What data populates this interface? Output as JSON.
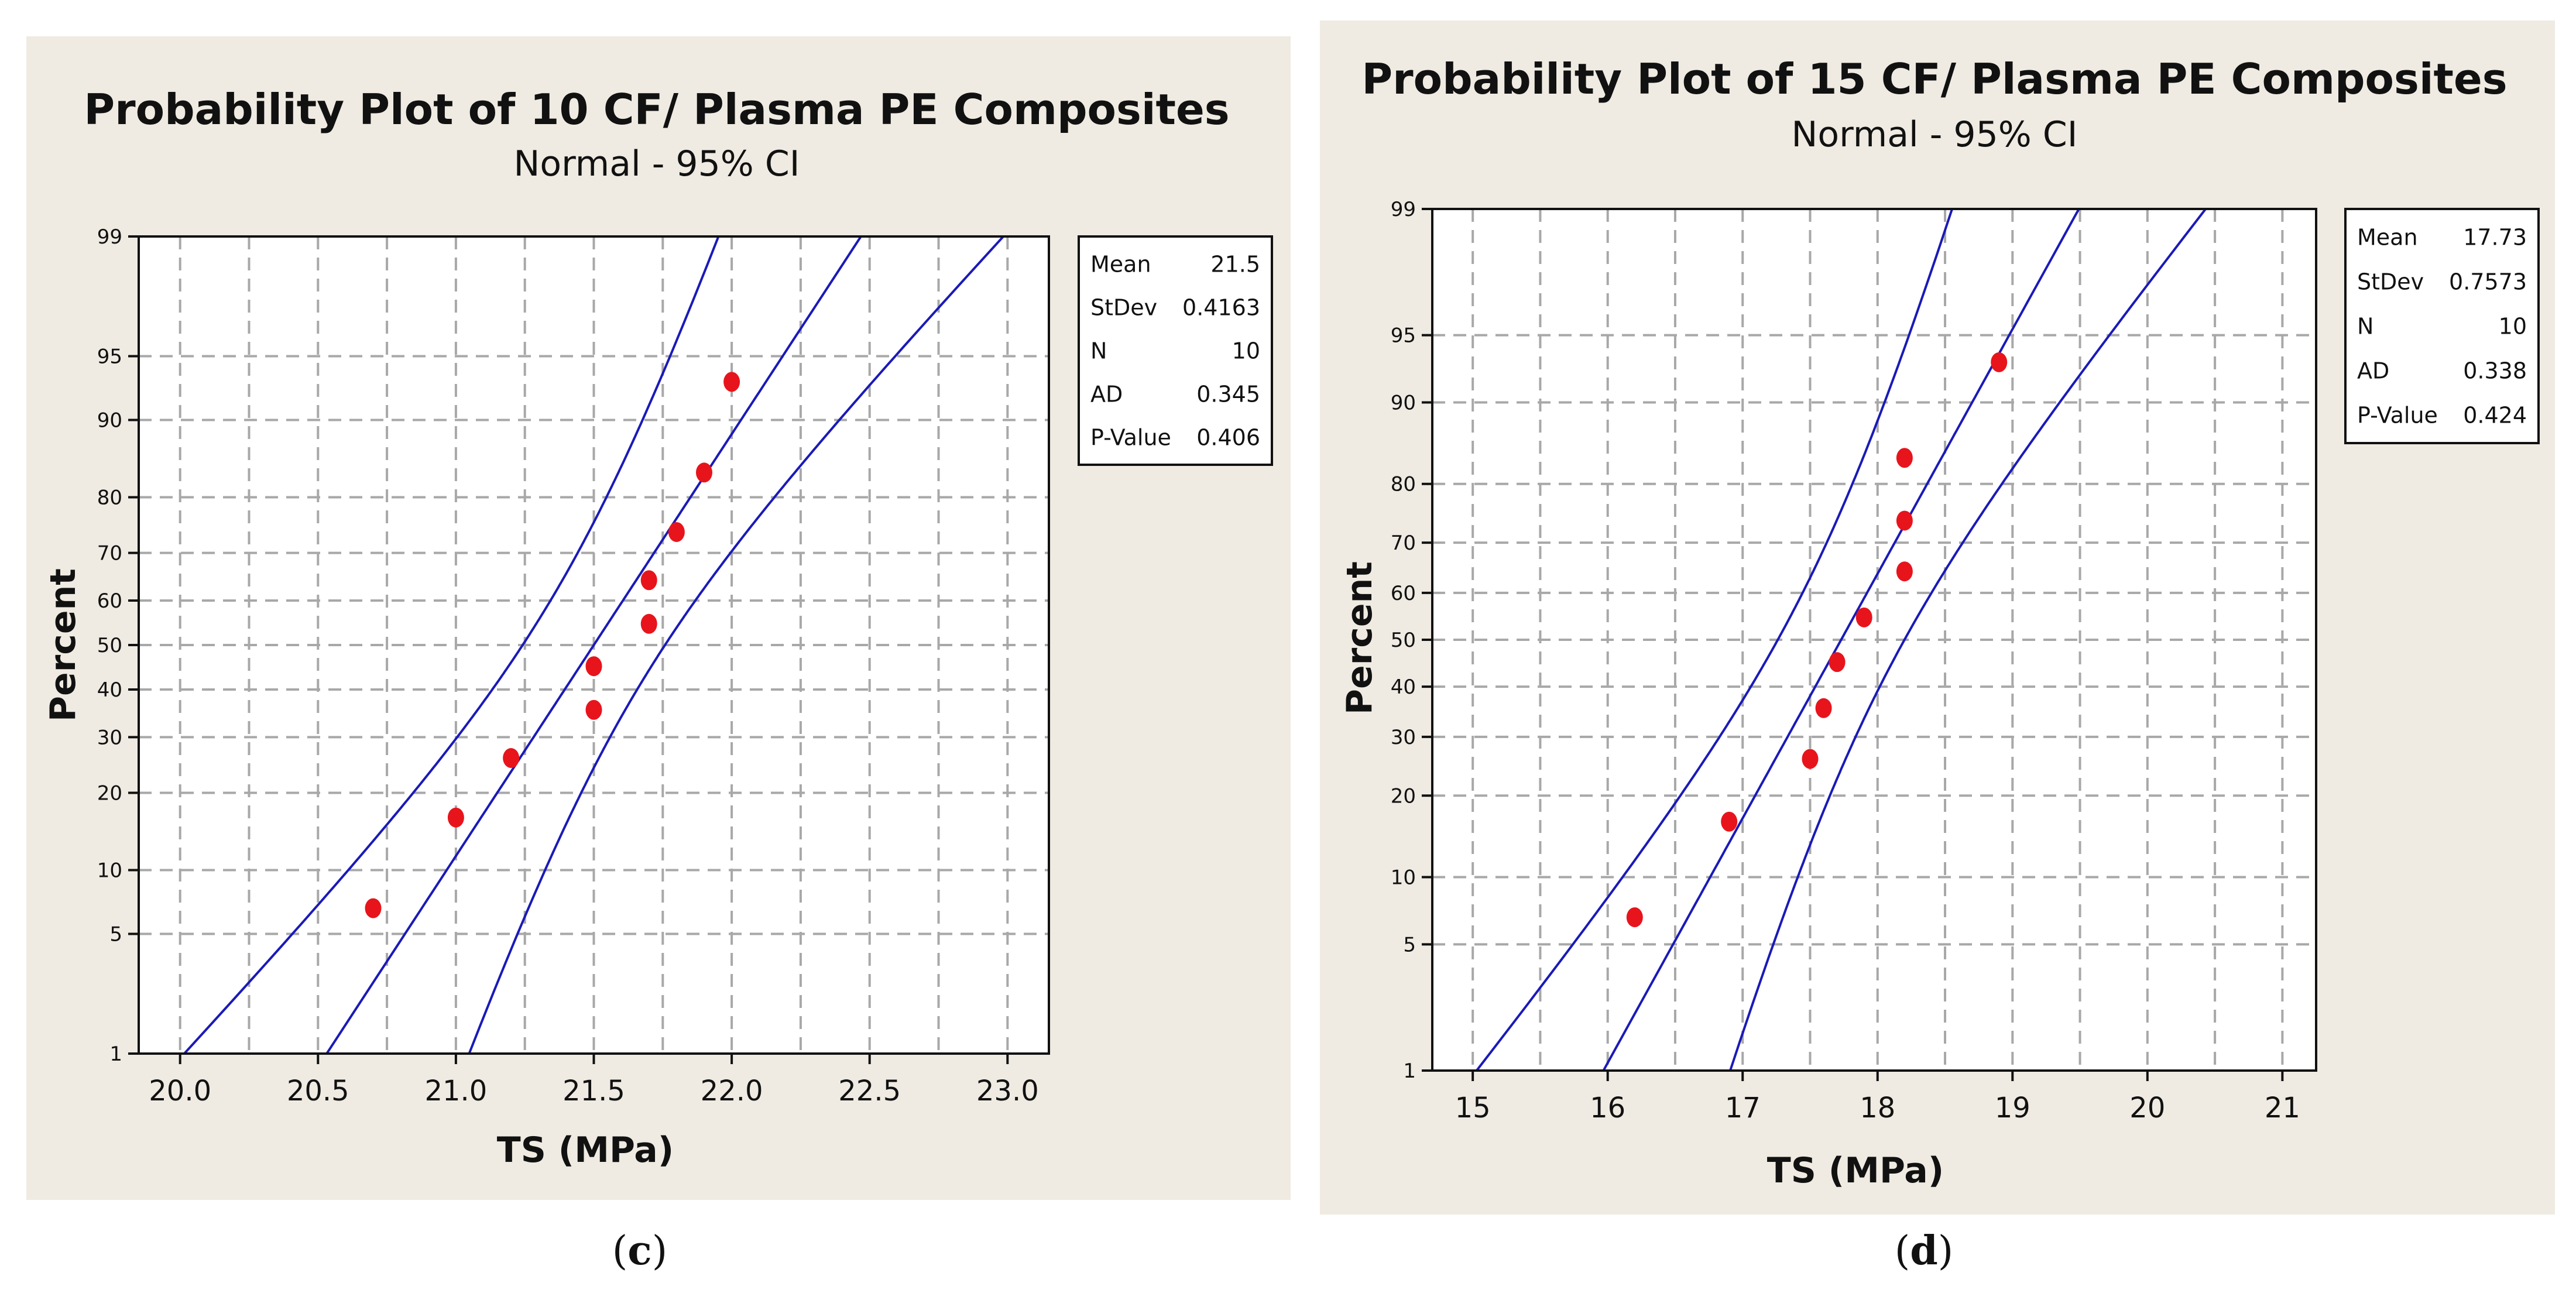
{
  "chart_data": [
    {
      "type": "scatter",
      "subtype": "normal-probability-plot",
      "title": "Probability Plot of 10 CF/ Plasma PE Composites",
      "subtitle": "Normal - 95% CI",
      "xlabel": "TS (MPa)",
      "ylabel": "Percent",
      "xlim": [
        19.85,
        23.15
      ],
      "x_ticks": [
        "20.0",
        "20.5",
        "21.0",
        "21.5",
        "22.0",
        "22.5",
        "23.0"
      ],
      "y_ticks": [
        "1",
        "5",
        "10",
        "20",
        "30",
        "40",
        "50",
        "60",
        "70",
        "80",
        "90",
        "95",
        "99"
      ],
      "points": [
        {
          "x": 20.7,
          "p": 6.7
        },
        {
          "x": 21.0,
          "p": 16.3
        },
        {
          "x": 21.2,
          "p": 26.0
        },
        {
          "x": 21.5,
          "p": 35.6
        },
        {
          "x": 21.5,
          "p": 45.2
        },
        {
          "x": 21.7,
          "p": 54.8
        },
        {
          "x": 21.7,
          "p": 64.4
        },
        {
          "x": 21.8,
          "p": 74.0
        },
        {
          "x": 21.9,
          "p": 83.7
        },
        {
          "x": 22.0,
          "p": 93.3
        }
      ],
      "fit": {
        "mean": 21.5,
        "stdev": 0.4163,
        "n": 10,
        "ci": "95%"
      },
      "stats": [
        {
          "label": "Mean",
          "value": "21.5"
        },
        {
          "label": "StDev",
          "value": "0.4163"
        },
        {
          "label": "N",
          "value": "10"
        },
        {
          "label": "AD",
          "value": "0.345"
        },
        {
          "label": "P-Value",
          "value": "0.406"
        }
      ],
      "grid": true,
      "legend": "right"
    },
    {
      "type": "scatter",
      "subtype": "normal-probability-plot",
      "title": "Probability Plot of 15 CF/ Plasma PE Composites",
      "subtitle": "Normal - 95% CI",
      "xlabel": "TS (MPa)",
      "ylabel": "Percent",
      "xlim": [
        14.7,
        21.25
      ],
      "x_ticks": [
        "15",
        "16",
        "17",
        "18",
        "19",
        "20",
        "21"
      ],
      "y_ticks": [
        "1",
        "5",
        "10",
        "20",
        "30",
        "40",
        "50",
        "60",
        "70",
        "80",
        "90",
        "95",
        "99"
      ],
      "points": [
        {
          "x": 16.2,
          "p": 6.7
        },
        {
          "x": 16.9,
          "p": 16.3
        },
        {
          "x": 17.5,
          "p": 26.0
        },
        {
          "x": 17.6,
          "p": 35.6
        },
        {
          "x": 17.7,
          "p": 45.2
        },
        {
          "x": 17.9,
          "p": 54.8
        },
        {
          "x": 18.2,
          "p": 64.4
        },
        {
          "x": 18.2,
          "p": 74.0
        },
        {
          "x": 18.2,
          "p": 83.7
        },
        {
          "x": 18.9,
          "p": 93.3
        }
      ],
      "fit": {
        "mean": 17.73,
        "stdev": 0.7573,
        "n": 10,
        "ci": "95%"
      },
      "stats": [
        {
          "label": "Mean",
          "value": "17.73"
        },
        {
          "label": "StDev",
          "value": "0.7573"
        },
        {
          "label": "N",
          "value": "10"
        },
        {
          "label": "AD",
          "value": "0.338"
        },
        {
          "label": "P-Value",
          "value": "0.424"
        }
      ],
      "grid": true,
      "legend": "right"
    }
  ],
  "captions": [
    {
      "open": "(",
      "letter": "c",
      "close": ")"
    },
    {
      "open": "(",
      "letter": "d",
      "close": ")"
    }
  ],
  "colors": {
    "panel_bg": "#efebe2",
    "plot_bg": "#ffffff",
    "grid": "#a8a8a8",
    "fit_line": "#1a1ab8",
    "point": "#e8141c"
  }
}
